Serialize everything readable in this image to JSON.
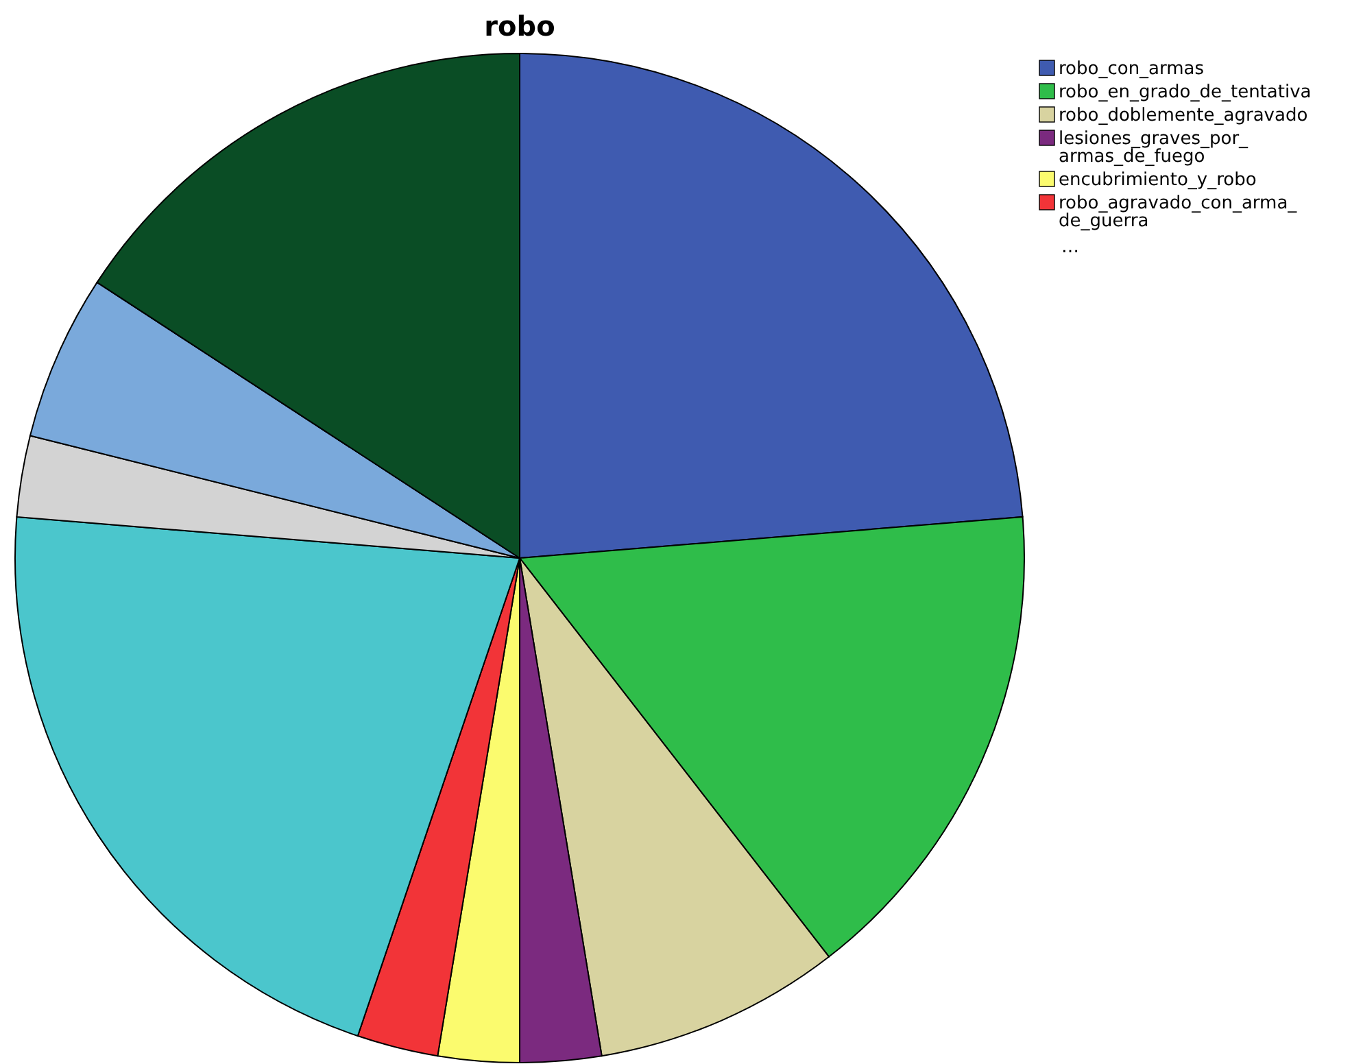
{
  "chart_data": {
    "type": "pie",
    "title": "robo",
    "categories": [
      "robo_con_armas",
      "robo_en_grado_de_tentativa",
      "robo_doblemente_agravado",
      "lesiones_graves_por_armas_de_fuego",
      "encubrimiento_y_robo",
      "robo_agravado_con_arma_de_guerra",
      null,
      null,
      null,
      null
    ],
    "values": [
      23.7,
      15.8,
      7.9,
      2.6,
      2.6,
      2.6,
      21.1,
      2.6,
      5.3,
      15.8
    ],
    "colors": [
      "#3f5bb0",
      "#2fbd4a",
      "#d8d3a0",
      "#7b2a7f",
      "#fbfb6e",
      "#f23438",
      "#4bc6cc",
      "#d3d3d3",
      "#7aa9db",
      "#0a4d25"
    ],
    "legend": "top right",
    "annotations": [
      "…"
    ]
  }
}
